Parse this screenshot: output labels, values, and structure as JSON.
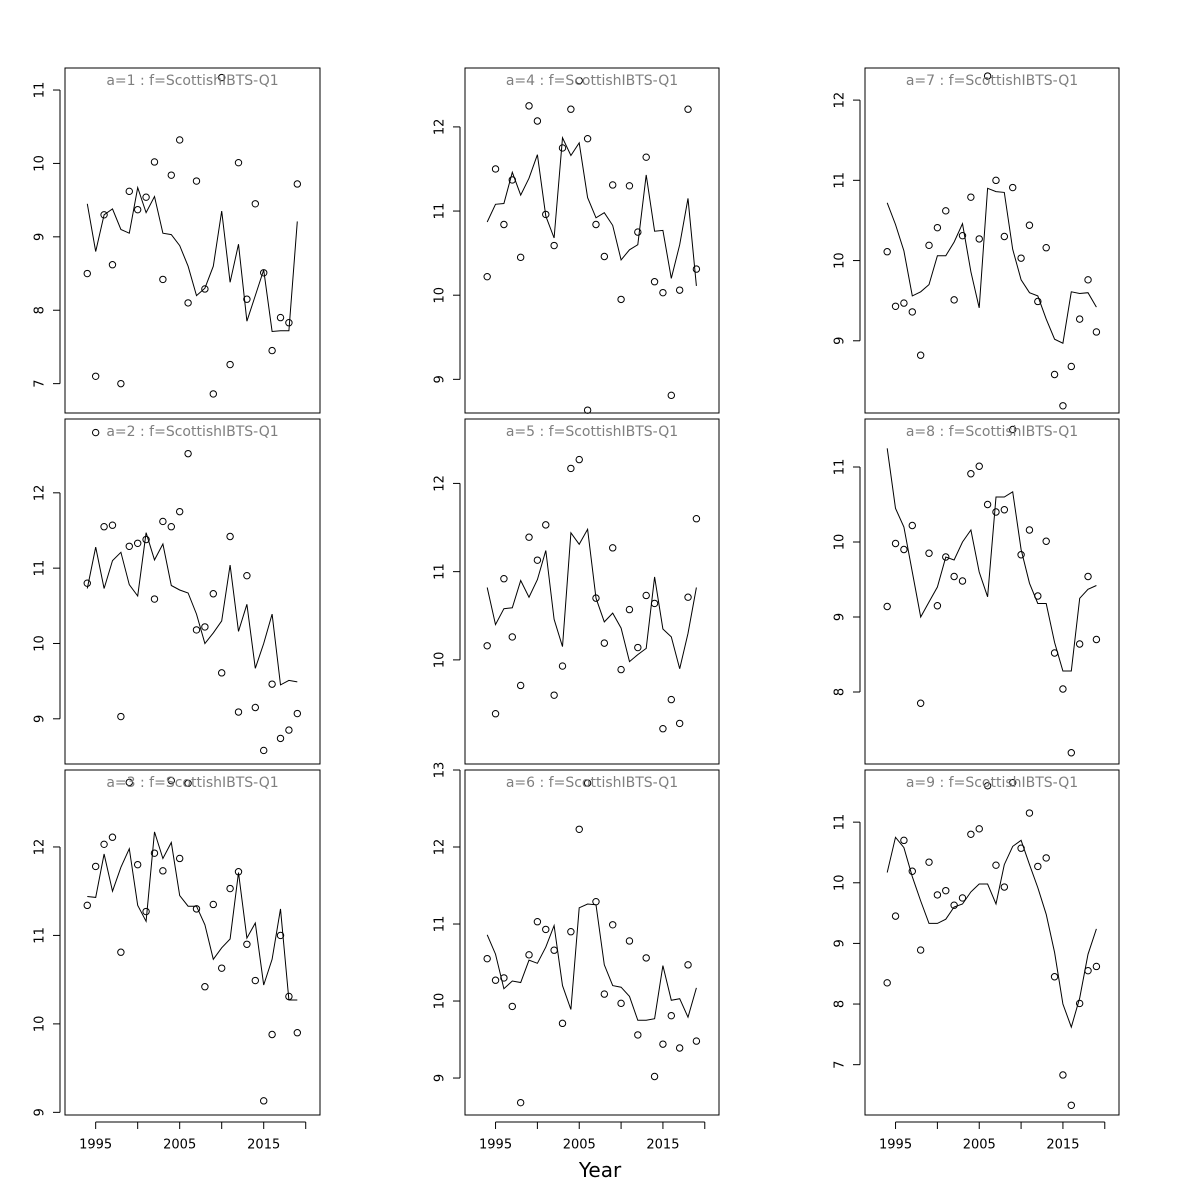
{
  "chart_data": [
    {
      "type": "scatter",
      "title": "a=1 : f=ScottishIBTS-Q1",
      "ylim": [
        6.6,
        11.3
      ],
      "yticks": [
        7,
        8,
        9,
        10,
        11
      ],
      "observed_x": [
        1994,
        1995,
        1996,
        1997,
        1998,
        1999,
        2000,
        2001,
        2002,
        2003,
        2004,
        2005,
        2006,
        2007,
        2008,
        2009,
        2010,
        2011,
        2012,
        2013,
        2014,
        2015,
        2016,
        2017,
        2018,
        2019
      ],
      "observed_y": [
        8.5,
        7.1,
        9.3,
        8.62,
        7.0,
        9.62,
        9.37,
        9.54,
        10.02,
        8.42,
        9.84,
        10.32,
        8.1,
        9.76,
        8.29,
        6.86,
        11.17,
        7.26,
        10.01,
        8.15,
        9.45,
        8.51,
        7.45,
        7.9,
        7.83,
        9.72
      ],
      "fitted_x": [
        1994,
        1995,
        1996,
        1997,
        1998,
        1999,
        2000,
        2001,
        2002,
        2003,
        2004,
        2005,
        2006,
        2007,
        2008,
        2009,
        2010,
        2011,
        2012,
        2013,
        2014,
        2015,
        2016,
        2017,
        2018,
        2019
      ],
      "fitted_y": [
        9.45,
        8.8,
        9.3,
        9.38,
        9.1,
        9.05,
        9.67,
        9.33,
        9.55,
        9.05,
        9.03,
        8.88,
        8.6,
        8.2,
        8.3,
        8.6,
        9.35,
        8.38,
        8.9,
        7.85,
        8.2,
        8.55,
        7.71,
        7.72,
        7.72,
        9.21
      ]
    },
    {
      "type": "scatter",
      "title": "a=4 : f=ScottishIBTS-Q1",
      "ylim": [
        8.6,
        12.7
      ],
      "yticks": [
        9,
        10,
        11,
        12
      ],
      "observed_x": [
        1994,
        1995,
        1996,
        1997,
        1998,
        1999,
        2000,
        2001,
        2002,
        2003,
        2004,
        2005,
        2006,
        2007,
        2008,
        2009,
        2010,
        2011,
        2012,
        2013,
        2014,
        2015,
        2016,
        2017,
        2018,
        2019
      ],
      "observed_y": [
        10.22,
        11.5,
        10.84,
        11.37,
        10.45,
        12.25,
        12.07,
        10.96,
        10.59,
        11.75,
        12.21,
        12.55,
        11.86,
        10.84,
        10.46,
        11.31,
        9.95,
        11.3,
        10.75,
        11.64,
        10.16,
        10.03,
        8.81,
        10.06,
        12.21,
        10.31
      ],
      "fitted_x": [
        1994,
        1995,
        1996,
        1997,
        1998,
        1999,
        2000,
        2001,
        2002,
        2003,
        2004,
        2005,
        2006,
        2007,
        2008,
        2009,
        2010,
        2011,
        2012,
        2013,
        2014,
        2015,
        2016,
        2017,
        2018,
        2019
      ],
      "fitted_y": [
        10.87,
        11.08,
        11.09,
        11.46,
        11.19,
        11.39,
        11.67,
        10.94,
        10.68,
        11.87,
        11.66,
        11.81,
        11.16,
        10.92,
        10.98,
        10.83,
        10.42,
        10.54,
        10.6,
        11.43,
        10.76,
        10.77,
        10.2,
        10.6,
        11.15,
        10.11
      ]
    },
    {
      "type": "scatter",
      "title": "a=7 : f=ScottishIBTS-Q1",
      "ylim": [
        8.1,
        12.4
      ],
      "yticks": [
        9,
        10,
        11,
        12
      ],
      "observed_x": [
        1994,
        1995,
        1996,
        1997,
        1998,
        1999,
        2000,
        2001,
        2002,
        2003,
        2004,
        2005,
        2006,
        2007,
        2008,
        2009,
        2010,
        2011,
        2012,
        2013,
        2014,
        2015,
        2016,
        2017,
        2018,
        2019
      ],
      "observed_y": [
        10.11,
        9.43,
        9.47,
        9.36,
        8.82,
        10.19,
        10.41,
        10.62,
        9.51,
        10.31,
        10.79,
        10.27,
        12.3,
        11.0,
        10.3,
        10.91,
        10.03,
        10.44,
        9.49,
        10.16,
        8.58,
        8.19,
        8.68,
        9.27,
        9.76,
        9.11
      ],
      "fitted_x": [
        1994,
        1995,
        1996,
        1997,
        1998,
        1999,
        2000,
        2001,
        2002,
        2003,
        2004,
        2005,
        2006,
        2007,
        2008,
        2009,
        2010,
        2011,
        2012,
        2013,
        2014,
        2015,
        2016,
        2017,
        2018,
        2019
      ],
      "fitted_y": [
        10.72,
        10.45,
        10.12,
        9.56,
        9.61,
        9.7,
        10.06,
        10.06,
        10.23,
        10.46,
        9.86,
        9.41,
        10.9,
        10.86,
        10.85,
        10.14,
        9.76,
        9.6,
        9.56,
        9.27,
        9.02,
        8.97,
        9.61,
        9.59,
        9.6,
        9.42
      ]
    },
    {
      "type": "scatter",
      "title": "a=2 : f=ScottishIBTS-Q1",
      "ylim": [
        8.4,
        12.98
      ],
      "yticks": [
        9,
        10,
        11,
        12
      ],
      "observed_x": [
        1994,
        1995,
        1996,
        1997,
        1998,
        1999,
        2000,
        2001,
        2002,
        2003,
        2004,
        2005,
        2006,
        2007,
        2008,
        2009,
        2010,
        2011,
        2012,
        2013,
        2014,
        2015,
        2016,
        2017,
        2018,
        2019
      ],
      "observed_y": [
        10.8,
        12.8,
        11.55,
        11.57,
        9.03,
        11.29,
        11.33,
        11.38,
        10.59,
        11.62,
        11.55,
        11.75,
        12.52,
        10.18,
        10.22,
        10.66,
        9.61,
        11.42,
        9.09,
        10.9,
        9.15,
        8.58,
        9.46,
        8.74,
        8.85,
        9.07
      ],
      "fitted_x": [
        1994,
        1995,
        1996,
        1997,
        1998,
        1999,
        2000,
        2001,
        2002,
        2003,
        2004,
        2005,
        2006,
        2007,
        2008,
        2009,
        2010,
        2011,
        2012,
        2013,
        2014,
        2015,
        2016,
        2017,
        2018,
        2019
      ],
      "fitted_y": [
        10.73,
        11.28,
        10.73,
        11.1,
        11.21,
        10.78,
        10.63,
        11.47,
        11.11,
        11.32,
        10.77,
        10.71,
        10.67,
        10.39,
        10.0,
        10.14,
        10.3,
        11.04,
        10.16,
        10.52,
        9.67,
        10.0,
        10.39,
        9.45,
        9.51,
        9.49
      ]
    },
    {
      "type": "scatter",
      "title": "a=5 : f=ScottishIBTS-Q1",
      "ylim": [
        8.82,
        12.73
      ],
      "yticks": [
        10,
        11,
        12
      ],
      "observed_x": [
        1994,
        1995,
        1996,
        1997,
        1998,
        1999,
        2000,
        2001,
        2002,
        2003,
        2004,
        2005,
        2006,
        2007,
        2008,
        2009,
        2010,
        2011,
        2012,
        2013,
        2014,
        2015,
        2016,
        2017,
        2018,
        2019
      ],
      "observed_y": [
        10.16,
        9.39,
        10.92,
        10.26,
        9.71,
        11.39,
        11.13,
        11.53,
        9.6,
        9.93,
        12.17,
        12.27,
        12.83,
        10.7,
        10.19,
        11.27,
        9.89,
        10.57,
        10.14,
        10.73,
        10.64,
        9.22,
        9.55,
        9.28,
        10.71,
        11.6
      ],
      "fitted_x": [
        1994,
        1995,
        1996,
        1997,
        1998,
        1999,
        2000,
        2001,
        2002,
        2003,
        2004,
        2005,
        2006,
        2007,
        2008,
        2009,
        2010,
        2011,
        2012,
        2013,
        2014,
        2015,
        2016,
        2017,
        2018,
        2019
      ],
      "fitted_y": [
        10.82,
        10.4,
        10.58,
        10.59,
        10.9,
        10.71,
        10.91,
        11.24,
        10.46,
        10.15,
        11.44,
        11.31,
        11.48,
        10.7,
        10.43,
        10.53,
        10.36,
        9.98,
        10.06,
        10.13,
        10.94,
        10.35,
        10.26,
        9.9,
        10.3,
        10.82
      ]
    },
    {
      "type": "scatter",
      "title": "a=8 : f=ScottishIBTS-Q1",
      "ylim": [
        7.04,
        11.64
      ],
      "yticks": [
        8,
        9,
        10,
        11
      ],
      "observed_x": [
        1994,
        1995,
        1996,
        1997,
        1998,
        1999,
        2000,
        2001,
        2002,
        2003,
        2004,
        2005,
        2006,
        2007,
        2008,
        2009,
        2010,
        2011,
        2012,
        2013,
        2014,
        2015,
        2016,
        2017,
        2018,
        2019
      ],
      "observed_y": [
        9.14,
        9.98,
        9.9,
        10.22,
        7.85,
        9.85,
        9.15,
        9.8,
        9.54,
        9.48,
        10.91,
        11.01,
        10.5,
        10.4,
        10.43,
        11.5,
        9.83,
        10.16,
        9.28,
        10.01,
        8.52,
        8.04,
        7.19,
        8.64,
        9.54,
        8.7
      ],
      "fitted_x": [
        1994,
        1995,
        1996,
        1997,
        1998,
        1999,
        2000,
        2001,
        2002,
        2003,
        2004,
        2005,
        2006,
        2007,
        2008,
        2009,
        2010,
        2011,
        2012,
        2013,
        2014,
        2015,
        2016,
        2017,
        2018,
        2019
      ],
      "fitted_y": [
        11.25,
        10.45,
        10.2,
        9.6,
        9.0,
        9.2,
        9.4,
        9.8,
        9.76,
        10.0,
        10.16,
        9.6,
        9.27,
        10.6,
        10.6,
        10.67,
        9.9,
        9.45,
        9.18,
        9.18,
        8.66,
        8.28,
        8.28,
        9.25,
        9.37,
        9.42
      ]
    },
    {
      "type": "scatter",
      "title": "a=3 : f=ScottishIBTS-Q1",
      "ylim": [
        8.97,
        12.87
      ],
      "yticks": [
        9,
        10,
        11,
        12
      ],
      "observed_x": [
        1994,
        1995,
        1996,
        1997,
        1998,
        1999,
        2000,
        2001,
        2002,
        2003,
        2004,
        2005,
        2006,
        2007,
        2008,
        2009,
        2010,
        2011,
        2012,
        2013,
        2014,
        2015,
        2016,
        2017,
        2018,
        2019
      ],
      "observed_y": [
        11.34,
        11.78,
        12.03,
        12.11,
        10.81,
        12.73,
        11.8,
        11.27,
        11.93,
        11.73,
        12.75,
        11.87,
        12.72,
        11.3,
        10.42,
        11.35,
        10.63,
        11.53,
        11.72,
        10.9,
        10.49,
        9.13,
        9.88,
        11.0,
        10.31,
        9.9
      ],
      "fitted_x": [
        1994,
        1995,
        1996,
        1997,
        1998,
        1999,
        2000,
        2001,
        2002,
        2003,
        2004,
        2005,
        2006,
        2007,
        2008,
        2009,
        2010,
        2011,
        2012,
        2013,
        2014,
        2015,
        2016,
        2017,
        2018,
        2019
      ],
      "fitted_y": [
        11.44,
        11.43,
        11.92,
        11.5,
        11.77,
        11.98,
        11.34,
        11.16,
        12.17,
        11.87,
        12.05,
        11.45,
        11.33,
        11.33,
        11.12,
        10.73,
        10.86,
        10.96,
        11.71,
        10.97,
        11.14,
        10.44,
        10.73,
        11.3,
        10.27,
        10.27
      ]
    },
    {
      "type": "scatter",
      "title": "a=6 : f=ScottishIBTS-Q1",
      "ylim": [
        8.52,
        13.0
      ],
      "yticks": [
        9,
        10,
        11,
        12,
        13
      ],
      "observed_x": [
        1994,
        1995,
        1996,
        1997,
        1998,
        1999,
        2000,
        2001,
        2002,
        2003,
        2004,
        2005,
        2006,
        2007,
        2008,
        2009,
        2010,
        2011,
        2012,
        2013,
        2014,
        2015,
        2016,
        2017,
        2018,
        2019
      ],
      "observed_y": [
        10.55,
        10.27,
        10.3,
        9.93,
        8.68,
        10.6,
        11.03,
        10.93,
        10.66,
        9.71,
        10.9,
        12.23,
        12.83,
        11.29,
        10.09,
        10.99,
        9.97,
        10.78,
        9.56,
        10.56,
        9.02,
        9.44,
        9.81,
        9.39,
        10.47,
        9.48
      ],
      "fitted_x": [
        1994,
        1995,
        1996,
        1997,
        1998,
        1999,
        2000,
        2001,
        2002,
        2003,
        2004,
        2005,
        2006,
        2007,
        2008,
        2009,
        2010,
        2011,
        2012,
        2013,
        2014,
        2015,
        2016,
        2017,
        2018,
        2019
      ],
      "fitted_y": [
        10.86,
        10.61,
        10.16,
        10.26,
        10.24,
        10.53,
        10.49,
        10.7,
        10.98,
        10.2,
        9.89,
        11.21,
        11.26,
        11.25,
        10.47,
        10.2,
        10.18,
        10.06,
        9.75,
        9.75,
        9.77,
        10.46,
        10.01,
        10.03,
        9.79,
        10.17
      ]
    },
    {
      "type": "scatter",
      "title": "a=9 : f=ScottishIBTS-Q1",
      "ylim": [
        6.17,
        11.86
      ],
      "yticks": [
        7,
        8,
        9,
        10,
        11
      ],
      "observed_x": [
        1994,
        1995,
        1996,
        1997,
        1998,
        1999,
        2000,
        2001,
        2002,
        2003,
        2004,
        2005,
        2006,
        2007,
        2008,
        2009,
        2010,
        2011,
        2012,
        2013,
        2014,
        2015,
        2016,
        2017,
        2018,
        2019
      ],
      "observed_y": [
        8.35,
        9.45,
        10.7,
        10.19,
        8.89,
        10.34,
        9.8,
        9.87,
        9.63,
        9.75,
        10.8,
        10.89,
        11.6,
        10.29,
        9.93,
        11.65,
        10.57,
        11.15,
        10.27,
        10.41,
        8.45,
        6.83,
        6.33,
        8.01,
        8.55,
        8.62
      ],
      "fitted_x": [
        1994,
        1995,
        1996,
        1997,
        1998,
        1999,
        2000,
        2001,
        2002,
        2003,
        2004,
        2005,
        2006,
        2007,
        2008,
        2009,
        2010,
        2011,
        2012,
        2013,
        2014,
        2015,
        2016,
        2017,
        2018,
        2019
      ],
      "fitted_y": [
        10.17,
        10.75,
        10.58,
        10.1,
        9.7,
        9.33,
        9.33,
        9.4,
        9.6,
        9.65,
        9.85,
        9.98,
        9.98,
        9.65,
        10.3,
        10.6,
        10.7,
        10.3,
        9.92,
        9.48,
        8.85,
        8.0,
        7.62,
        8.1,
        8.82,
        9.24
      ]
    }
  ],
  "x_axis": {
    "label": "Year",
    "xlim": [
      1991.35,
      2021.7
    ],
    "tick_values": [
      1995,
      2005,
      2015
    ],
    "tick_labels": [
      "1995",
      "2005",
      "2015"
    ],
    "minor_ticks": [
      2000,
      2010,
      2020
    ]
  }
}
